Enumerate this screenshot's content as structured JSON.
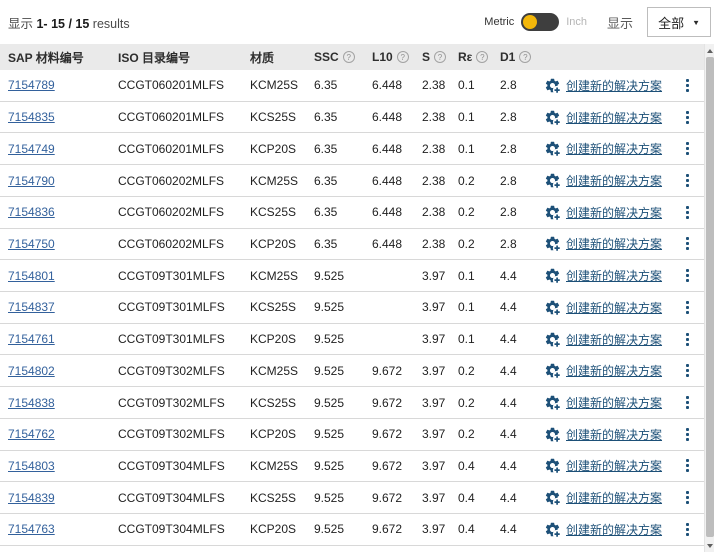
{
  "topbar": {
    "results_prefix": "显示 ",
    "results_bold": "1- 15 / 15",
    "results_suffix": " results",
    "metric_label": "Metric",
    "inch_label": "Inch",
    "show_label": "显示",
    "filter_value": "全部",
    "filter_caret": "▼"
  },
  "colors": {
    "accent_yellow": "#f3b70a",
    "sap_link_blue": "#33619c",
    "action_blue": "#1d5078",
    "header_gray": "#eaeaea"
  },
  "table": {
    "help_glyph": "?",
    "headers": [
      {
        "label": "SAP 材料编号",
        "help": false
      },
      {
        "label": "ISO 目录编号",
        "help": false
      },
      {
        "label": "材质",
        "help": false
      },
      {
        "label": "SSC",
        "help": true
      },
      {
        "label": "L10",
        "help": true
      },
      {
        "label": "S",
        "help": true
      },
      {
        "label": "Rε",
        "help": true
      },
      {
        "label": "D1",
        "help": true
      }
    ],
    "action_label": "创建新的解决方案",
    "rows": [
      {
        "sap": "7154789",
        "iso": "CCGT060201MLFS",
        "grade": "KCM25S",
        "ssc": "6.35",
        "l10": "6.448",
        "s": "2.38",
        "re": "0.1",
        "d1": "2.8"
      },
      {
        "sap": "7154835",
        "iso": "CCGT060201MLFS",
        "grade": "KCS25S",
        "ssc": "6.35",
        "l10": "6.448",
        "s": "2.38",
        "re": "0.1",
        "d1": "2.8"
      },
      {
        "sap": "7154749",
        "iso": "CCGT060201MLFS",
        "grade": "KCP20S",
        "ssc": "6.35",
        "l10": "6.448",
        "s": "2.38",
        "re": "0.1",
        "d1": "2.8"
      },
      {
        "sap": "7154790",
        "iso": "CCGT060202MLFS",
        "grade": "KCM25S",
        "ssc": "6.35",
        "l10": "6.448",
        "s": "2.38",
        "re": "0.2",
        "d1": "2.8"
      },
      {
        "sap": "7154836",
        "iso": "CCGT060202MLFS",
        "grade": "KCS25S",
        "ssc": "6.35",
        "l10": "6.448",
        "s": "2.38",
        "re": "0.2",
        "d1": "2.8"
      },
      {
        "sap": "7154750",
        "iso": "CCGT060202MLFS",
        "grade": "KCP20S",
        "ssc": "6.35",
        "l10": "6.448",
        "s": "2.38",
        "re": "0.2",
        "d1": "2.8"
      },
      {
        "sap": "7154801",
        "iso": "CCGT09T301MLFS",
        "grade": "KCM25S",
        "ssc": "9.525",
        "l10": "",
        "s": "3.97",
        "re": "0.1",
        "d1": "4.4"
      },
      {
        "sap": "7154837",
        "iso": "CCGT09T301MLFS",
        "grade": "KCS25S",
        "ssc": "9.525",
        "l10": "",
        "s": "3.97",
        "re": "0.1",
        "d1": "4.4"
      },
      {
        "sap": "7154761",
        "iso": "CCGT09T301MLFS",
        "grade": "KCP20S",
        "ssc": "9.525",
        "l10": "",
        "s": "3.97",
        "re": "0.1",
        "d1": "4.4"
      },
      {
        "sap": "7154802",
        "iso": "CCGT09T302MLFS",
        "grade": "KCM25S",
        "ssc": "9.525",
        "l10": "9.672",
        "s": "3.97",
        "re": "0.2",
        "d1": "4.4"
      },
      {
        "sap": "7154838",
        "iso": "CCGT09T302MLFS",
        "grade": "KCS25S",
        "ssc": "9.525",
        "l10": "9.672",
        "s": "3.97",
        "re": "0.2",
        "d1": "4.4"
      },
      {
        "sap": "7154762",
        "iso": "CCGT09T302MLFS",
        "grade": "KCP20S",
        "ssc": "9.525",
        "l10": "9.672",
        "s": "3.97",
        "re": "0.2",
        "d1": "4.4"
      },
      {
        "sap": "7154803",
        "iso": "CCGT09T304MLFS",
        "grade": "KCM25S",
        "ssc": "9.525",
        "l10": "9.672",
        "s": "3.97",
        "re": "0.4",
        "d1": "4.4"
      },
      {
        "sap": "7154839",
        "iso": "CCGT09T304MLFS",
        "grade": "KCS25S",
        "ssc": "9.525",
        "l10": "9.672",
        "s": "3.97",
        "re": "0.4",
        "d1": "4.4"
      },
      {
        "sap": "7154763",
        "iso": "CCGT09T304MLFS",
        "grade": "KCP20S",
        "ssc": "9.525",
        "l10": "9.672",
        "s": "3.97",
        "re": "0.4",
        "d1": "4.4"
      }
    ]
  }
}
